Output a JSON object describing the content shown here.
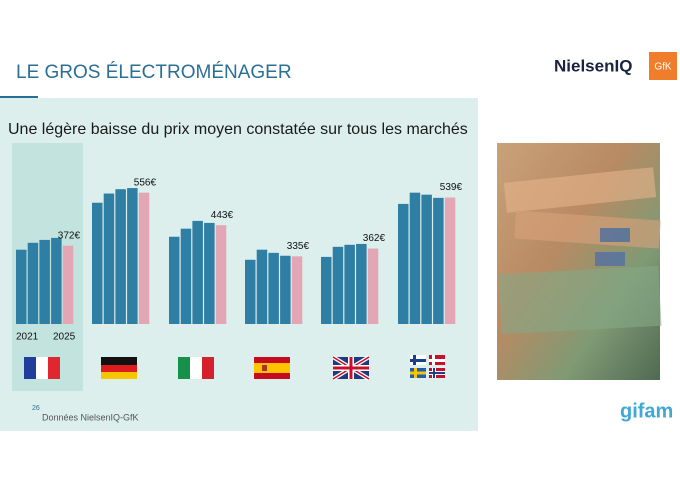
{
  "header": {
    "title": "LE GROS ÉLECTROMÉNAGER",
    "logo_left": "NielsenIQ",
    "logo_right": "GfK"
  },
  "chart_data": {
    "type": "bar",
    "title": "Une légère baisse du prix moyen constatée sur tous les marchés",
    "categories": [
      null,
      null,
      null,
      null,
      null,
      null
    ],
    "series": [
      {
        "name": "2021",
        "color": "#2f7ea3",
        "values": [
          358,
          521,
          403,
          323,
          333,
          517
        ]
      },
      {
        "name": null,
        "color": "#2f7ea3",
        "values": [
          382,
          553,
          431,
          358,
          368,
          556
        ]
      },
      {
        "name": null,
        "color": "#2f7ea3",
        "values": [
          392,
          568,
          458,
          347,
          375,
          549
        ]
      },
      {
        "name": null,
        "color": "#2f7ea3",
        "values": [
          399,
          572,
          451,
          337,
          378,
          538
        ]
      },
      {
        "name": "2025",
        "color": "#e3a6b5",
        "values": [
          372,
          556,
          443,
          335,
          362,
          539
        ],
        "value_labels": [
          "372€",
          "556€",
          "443€",
          "335€",
          "362€",
          "539€"
        ]
      }
    ],
    "ylim": [
      100,
      600
    ]
  },
  "footer": {
    "page": "26",
    "source": "Données NielsenIQ-GfK",
    "logo": "gifam"
  }
}
